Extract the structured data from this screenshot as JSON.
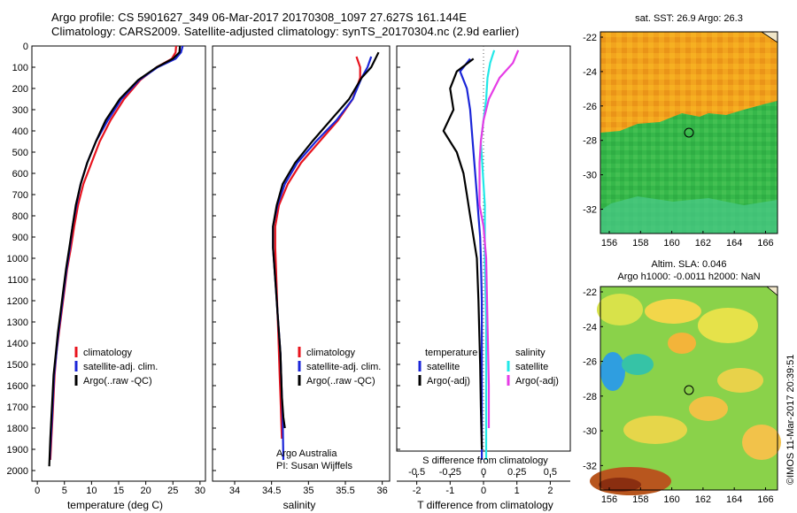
{
  "titles": {
    "line1": "Argo profile: CS 5901627_349 06-Mar-2017 20170308_1097 27.627S 161.144E",
    "line2": "Climatology: CARS2009. Satellite-adjusted climatology: synTS_20170304.nc (2.9d earlier)"
  },
  "credit": "©IMOS 11-Mar-2017 20:39:51",
  "colors": {
    "climatology": "#e8141e",
    "satellite": "#1b26d8",
    "argo": "#000000",
    "sal_satellite": "#22e8e8",
    "sal_argo": "#e63ce6"
  },
  "depth_axis": {
    "ylim": [
      0,
      2050
    ],
    "ticks": [
      0,
      100,
      200,
      300,
      400,
      500,
      600,
      700,
      800,
      900,
      1000,
      1100,
      1200,
      1300,
      1400,
      1500,
      1600,
      1700,
      1800,
      1900,
      2000
    ]
  },
  "panel_texts": {
    "temp_legend": [
      "climatology",
      "satellite-adj. clim.",
      "Argo(..raw -QC)"
    ],
    "sal_legend": [
      "climatology",
      "satellite-adj. clim.",
      "Argo(..raw -QC)"
    ],
    "sal_note": [
      "Argo Australia",
      "PI: Susan Wijffels"
    ],
    "diff_legend_temp_head": "temperature",
    "diff_legend_sal_head": "salinity",
    "diff_legend_temp": [
      "satellite",
      "Argo(-adj)"
    ],
    "diff_legend_sal": [
      "satellite",
      "Argo(-adj)"
    ],
    "diff_top_label": "S difference from climatology",
    "diff_bottom_label": "T difference from climatology"
  },
  "map_labels": {
    "sst_title": "sat. SST: 26.9 Argo: 26.3",
    "sla_title1": "Altim. SLA: 0.046",
    "sla_title2": "Argo h1000: -0.0011 h2000: NaN",
    "xticks": [
      "156",
      "158",
      "160",
      "162",
      "164",
      "166"
    ],
    "yticks": [
      "-22",
      "-24",
      "-26",
      "-28",
      "-30",
      "-32"
    ]
  },
  "chart_data": [
    {
      "type": "line",
      "xlabel": "temperature (deg C)",
      "ylabel": "",
      "xlim": [
        -1,
        31
      ],
      "xticks": [
        0,
        5,
        10,
        15,
        20,
        25,
        30
      ],
      "ylim": [
        0,
        2050
      ],
      "y_inverted": true,
      "series": [
        {
          "name": "climatology",
          "x": [
            25.6,
            25.5,
            24.8,
            22.0,
            19.0,
            16.0,
            13.5,
            11.5,
            10.0,
            8.5,
            7.5,
            6.8,
            6.2,
            5.5,
            5.0,
            4.5,
            4.0,
            3.5,
            3.2,
            3.0,
            2.8,
            2.6,
            2.4
          ],
          "y": [
            0,
            30,
            60,
            100,
            160,
            250,
            350,
            450,
            550,
            650,
            750,
            850,
            950,
            1050,
            1150,
            1250,
            1350,
            1450,
            1550,
            1650,
            1750,
            1850,
            1950
          ]
        },
        {
          "name": "satellite-adj. clim.",
          "x": [
            26.8,
            26.5,
            25.5,
            22.2,
            18.8,
            15.5,
            13.0,
            10.8,
            9.2,
            8.0,
            7.2,
            6.5,
            6.0,
            5.4,
            4.9,
            4.4,
            3.9,
            3.5,
            3.1,
            2.9,
            2.7,
            2.5,
            2.3
          ],
          "y": [
            0,
            30,
            60,
            100,
            160,
            250,
            350,
            450,
            550,
            650,
            750,
            850,
            950,
            1050,
            1150,
            1250,
            1350,
            1450,
            1550,
            1650,
            1750,
            1850,
            1950
          ]
        },
        {
          "name": "Argo(..raw -QC)",
          "x": [
            26.3,
            26.2,
            25.0,
            22.0,
            18.6,
            15.2,
            12.6,
            10.8,
            9.2,
            8.0,
            7.1,
            6.5,
            5.9,
            5.3,
            4.8,
            4.3,
            3.8,
            3.4,
            3.0,
            2.8,
            2.6,
            2.4,
            2.2
          ],
          "y": [
            0,
            30,
            60,
            100,
            160,
            250,
            350,
            450,
            550,
            650,
            750,
            850,
            950,
            1050,
            1150,
            1250,
            1350,
            1450,
            1550,
            1650,
            1750,
            1850,
            1980
          ]
        }
      ]
    },
    {
      "type": "line",
      "xlabel": "salinity",
      "ylabel": "",
      "xlim": [
        33.7,
        36.1
      ],
      "xticks": [
        34,
        34.5,
        35,
        35.5,
        36
      ],
      "ylim": [
        0,
        2050
      ],
      "y_inverted": true,
      "series": [
        {
          "name": "climatology",
          "x": [
            35.65,
            35.7,
            35.7,
            35.6,
            35.4,
            35.15,
            34.9,
            34.72,
            34.6,
            34.55,
            34.55,
            34.56,
            34.57,
            34.58,
            34.59,
            34.6,
            34.61,
            34.62,
            34.63,
            34.64
          ],
          "y": [
            50,
            100,
            150,
            250,
            350,
            450,
            550,
            650,
            750,
            850,
            950,
            1050,
            1150,
            1250,
            1350,
            1450,
            1550,
            1650,
            1750,
            1850
          ]
        },
        {
          "name": "satellite-adj. clim.",
          "x": [
            35.85,
            35.8,
            35.72,
            35.6,
            35.38,
            35.1,
            34.85,
            34.68,
            34.58,
            34.52,
            34.52,
            34.54,
            34.56,
            34.58,
            34.6,
            34.62,
            34.63,
            34.64,
            34.65,
            34.66
          ],
          "y": [
            50,
            100,
            150,
            250,
            350,
            450,
            550,
            650,
            750,
            850,
            950,
            1050,
            1150,
            1250,
            1350,
            1450,
            1550,
            1650,
            1750,
            1950
          ]
        },
        {
          "name": "Argo(..raw -QC)",
          "x": [
            35.95,
            35.85,
            35.72,
            35.55,
            35.3,
            35.05,
            34.82,
            34.65,
            34.57,
            34.52,
            34.52,
            34.54,
            34.56,
            34.58,
            34.6,
            34.62,
            34.63,
            34.64,
            34.66,
            34.68
          ],
          "y": [
            30,
            100,
            150,
            250,
            350,
            450,
            550,
            650,
            750,
            850,
            950,
            1050,
            1150,
            1250,
            1350,
            1450,
            1550,
            1650,
            1750,
            1800
          ]
        }
      ]
    },
    {
      "type": "line",
      "xlabel": "T difference from climatology",
      "top_xlabel": "S difference from climatology",
      "xlim": [
        -2.6,
        2.6
      ],
      "xticks": [
        -2,
        -1,
        0,
        1,
        2
      ],
      "top_xlim": [
        -0.65,
        0.65
      ],
      "top_xticks": [
        -0.5,
        -0.25,
        0,
        0.25,
        0.5
      ],
      "ylim": [
        0,
        2050
      ],
      "y_inverted": true,
      "series": [
        {
          "name": "temperature satellite",
          "axis": "T",
          "x": [
            -0.4,
            -0.7,
            -0.5,
            -0.4,
            -0.35,
            -0.3,
            -0.25,
            -0.2,
            -0.15,
            -0.1,
            -0.08,
            -0.05,
            -0.05,
            -0.05,
            -0.05
          ],
          "y": [
            60,
            120,
            200,
            300,
            400,
            500,
            600,
            700,
            800,
            900,
            1000,
            1200,
            1500,
            1700,
            1950
          ]
        },
        {
          "name": "temperature Argo(-adj)",
          "axis": "T",
          "x": [
            -0.3,
            -0.8,
            -1.0,
            -0.9,
            -1.2,
            -0.8,
            -0.6,
            -0.5,
            -0.4,
            -0.3,
            -0.2,
            -0.15,
            -0.1,
            -0.08,
            -0.05
          ],
          "y": [
            60,
            120,
            200,
            300,
            400,
            500,
            600,
            700,
            800,
            900,
            1000,
            1200,
            1500,
            1700,
            1900
          ]
        },
        {
          "name": "salinity satellite",
          "axis": "S",
          "x": [
            0.08,
            0.05,
            0.03,
            0.02,
            0.0,
            -0.02,
            -0.01,
            0.0,
            0.01,
            0.01,
            0.01,
            0.02,
            0.02,
            0.02
          ],
          "y": [
            20,
            80,
            150,
            250,
            350,
            450,
            550,
            650,
            750,
            850,
            1000,
            1300,
            1600,
            1950
          ]
        },
        {
          "name": "salinity Argo(-adj)",
          "axis": "S",
          "x": [
            0.26,
            0.22,
            0.12,
            0.04,
            0.0,
            -0.02,
            -0.03,
            -0.03,
            -0.03,
            0.0,
            0.02,
            0.03,
            0.04,
            0.04
          ],
          "y": [
            20,
            80,
            150,
            250,
            350,
            450,
            550,
            650,
            750,
            850,
            1000,
            1300,
            1600,
            1800
          ]
        }
      ]
    }
  ]
}
